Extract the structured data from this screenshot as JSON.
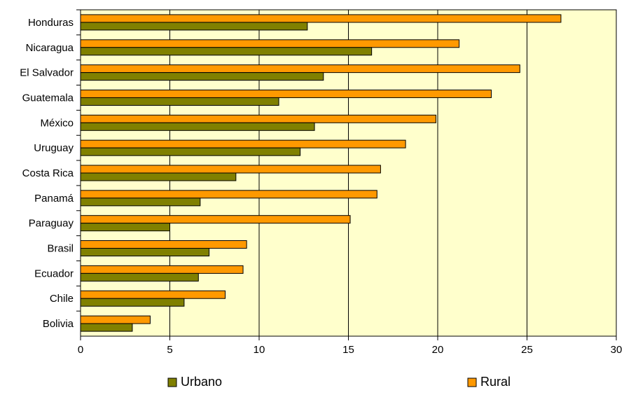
{
  "chart_data": {
    "type": "bar",
    "orientation": "horizontal",
    "title": "",
    "xlabel": "",
    "ylabel": "",
    "categories": [
      "Honduras",
      "Nicaragua",
      "El Salvador",
      "Guatemala",
      "México",
      "Uruguay",
      "Costa Rica",
      "Panamá",
      "Paraguay",
      "Brasil",
      "Ecuador",
      "Chile",
      "Bolivia"
    ],
    "series": [
      {
        "name": "Rural",
        "color": "#FF9900",
        "values": [
          26.9,
          21.2,
          24.6,
          23.0,
          19.9,
          18.2,
          16.8,
          16.6,
          15.1,
          9.3,
          9.1,
          8.1,
          3.9
        ]
      },
      {
        "name": "Urbano",
        "color": "#808000",
        "values": [
          12.7,
          16.3,
          13.6,
          11.1,
          13.1,
          12.3,
          8.7,
          6.7,
          5.0,
          7.2,
          6.6,
          5.8,
          2.9
        ]
      }
    ],
    "xlim": [
      0,
      30
    ],
    "x_ticks": [
      "0",
      "5",
      "10",
      "15",
      "20",
      "25",
      "30"
    ],
    "grid": "vertical",
    "legend_position": "bottom",
    "legend": [
      {
        "label": "Urbano",
        "color": "#808000"
      },
      {
        "label": "Rural",
        "color": "#FF9900"
      }
    ],
    "plot_background": "#FFFFCC"
  }
}
